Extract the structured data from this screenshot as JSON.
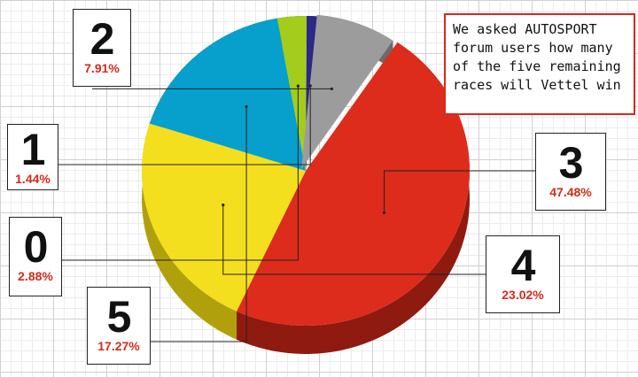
{
  "chart_data": {
    "type": "pie",
    "categories": [
      "3",
      "4",
      "5",
      "0",
      "1",
      "2"
    ],
    "values": [
      47.48,
      23.02,
      17.27,
      2.88,
      1.44,
      7.91
    ],
    "value_labels": [
      "47.48%",
      "23.02%",
      "17.27%",
      "2.88%",
      "1.44%",
      "7.91%"
    ],
    "colors": [
      "#dd2c1c",
      "#f4df1e",
      "#079fcc",
      "#a4cc1c",
      "#2b2887",
      "#9c9c9c"
    ],
    "side_colors": [
      "#8f1a10",
      "#b0a10c",
      "#0a6d8e",
      "#5f7d10",
      "#1a185a",
      "#6a6a6a"
    ],
    "annotation": "We asked AUTOSPORT forum users how many of the five remaining races will Vettel win",
    "style": "3d-exploded-pie"
  }
}
